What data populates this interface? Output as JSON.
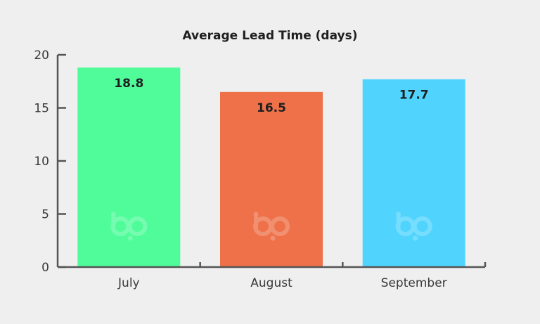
{
  "chart_data": {
    "type": "bar",
    "title": "Average Lead Time (days)",
    "xlabel": "",
    "ylabel": "",
    "categories": [
      "July",
      "August",
      "September"
    ],
    "values": [
      18.8,
      16.5,
      17.7
    ],
    "data_labels": [
      "18.8",
      "16.5",
      "17.7"
    ],
    "colors": [
      "#50fc9a",
      "#ee7149",
      "#50d4fe"
    ],
    "ylim": [
      0,
      20
    ],
    "yticks": [
      0,
      5,
      10,
      15,
      20
    ],
    "ytick_labels": [
      "0",
      "5",
      "10",
      "15",
      "20"
    ],
    "grid": false,
    "legend": "none",
    "watermark_icon": "bp-logo-icon"
  }
}
